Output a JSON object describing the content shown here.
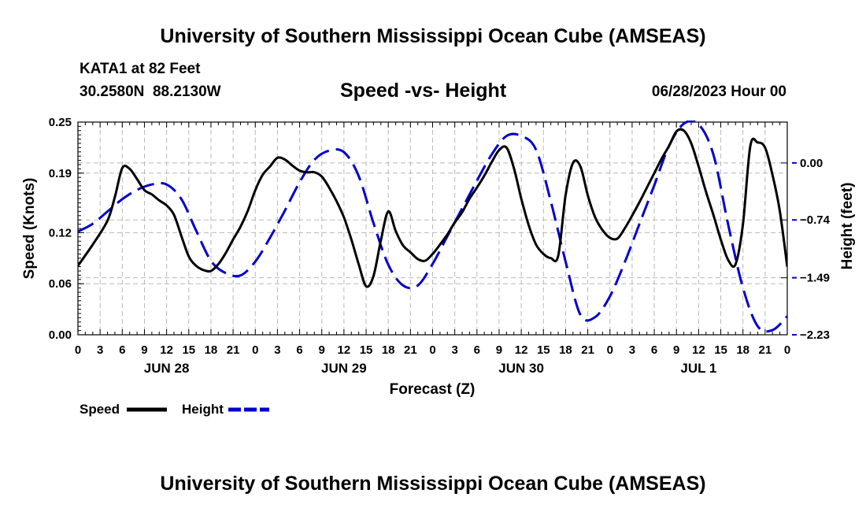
{
  "page": {
    "top_title": "University of Southern Mississippi Ocean Cube (AMSEAS)",
    "bottom_title": "University of Southern Mississippi Ocean Cube (AMSEAS)",
    "station": "KATA1 at 82 Feet",
    "coords": "30.2580N  88.2130W",
    "datetime": "06/28/2023 Hour 00"
  },
  "chart_data": {
    "type": "line",
    "title": "Speed -vs- Height",
    "xlabel": "Forecast (Z)",
    "ylabel_left": "Speed (Knots)",
    "ylabel_right": "Height (feet)",
    "x_unit": "hours from 06/28/2023 00Z",
    "xlim": [
      0,
      96
    ],
    "x_tick_step": 3,
    "x_tick_labels": [
      "0",
      "3",
      "6",
      "9",
      "12",
      "15",
      "18",
      "21",
      "0",
      "3",
      "6",
      "9",
      "12",
      "15",
      "18",
      "21",
      "0",
      "3",
      "6",
      "9",
      "12",
      "15",
      "18",
      "21",
      "0",
      "3",
      "6",
      "9",
      "12",
      "15",
      "18",
      "21",
      "0"
    ],
    "day_labels": [
      {
        "hour": 12,
        "label": "JUN 28"
      },
      {
        "hour": 36,
        "label": "JUN 29"
      },
      {
        "hour": 60,
        "label": "JUN 30"
      },
      {
        "hour": 84,
        "label": "JUL 1"
      }
    ],
    "ylim_left": [
      0,
      0.25
    ],
    "y_ticks_left": [
      0.0,
      0.06,
      0.12,
      0.19,
      0.25
    ],
    "y_tick_labels_left": [
      "0.00",
      "0.06",
      "0.12",
      "0.19",
      "0.25"
    ],
    "ylim_right": [
      -2.23,
      0.53
    ],
    "y_ticks_right": [
      0.0,
      -0.74,
      -1.49,
      -2.23
    ],
    "y_tick_labels_right": [
      "0.00",
      "−0.74",
      "−1.49",
      "−2.23"
    ],
    "grid": true,
    "series": [
      {
        "name": "Speed",
        "axis": "left",
        "color": "#000000",
        "style": "solid",
        "x": [
          0,
          2,
          4,
          5,
          6,
          7,
          8,
          9,
          10,
          11,
          12,
          13,
          14,
          15,
          16,
          17,
          18,
          19,
          20,
          21,
          22,
          23,
          24,
          25,
          26,
          27,
          28,
          29,
          30,
          31,
          32,
          33,
          34,
          35,
          36,
          37,
          38,
          39,
          40,
          41,
          42,
          43,
          44,
          45,
          46,
          47,
          48,
          49,
          50,
          51,
          52,
          53,
          54,
          55,
          56,
          57,
          58,
          59,
          60,
          61,
          62,
          63,
          64,
          65,
          66,
          67,
          68,
          69,
          70,
          71,
          72,
          73,
          74,
          75,
          76,
          77,
          78,
          79,
          80,
          81,
          82,
          83,
          84,
          85,
          86,
          87,
          88,
          89,
          90,
          91,
          92,
          93,
          94,
          95,
          96
        ],
        "values": [
          0.081,
          0.106,
          0.134,
          0.162,
          0.196,
          0.195,
          0.183,
          0.17,
          0.165,
          0.158,
          0.152,
          0.141,
          0.116,
          0.092,
          0.081,
          0.076,
          0.075,
          0.083,
          0.096,
          0.112,
          0.127,
          0.146,
          0.17,
          0.188,
          0.198,
          0.208,
          0.206,
          0.199,
          0.193,
          0.191,
          0.191,
          0.186,
          0.173,
          0.157,
          0.138,
          0.112,
          0.083,
          0.057,
          0.069,
          0.111,
          0.145,
          0.122,
          0.105,
          0.097,
          0.089,
          0.087,
          0.095,
          0.106,
          0.118,
          0.132,
          0.144,
          0.16,
          0.173,
          0.187,
          0.203,
          0.217,
          0.22,
          0.196,
          0.16,
          0.129,
          0.106,
          0.095,
          0.09,
          0.093,
          0.164,
          0.202,
          0.198,
          0.164,
          0.138,
          0.123,
          0.114,
          0.113,
          0.125,
          0.14,
          0.156,
          0.173,
          0.19,
          0.207,
          0.222,
          0.239,
          0.24,
          0.225,
          0.198,
          0.168,
          0.141,
          0.112,
          0.088,
          0.083,
          0.13,
          0.222,
          0.226,
          0.22,
          0.188,
          0.145,
          0.08
        ]
      },
      {
        "name": "Height",
        "axis": "right",
        "color": "#0000cc",
        "style": "dashed",
        "x": [
          0,
          2,
          4,
          6,
          8,
          10,
          12,
          14,
          16,
          18,
          20,
          22,
          24,
          26,
          28,
          30,
          32,
          34,
          36,
          38,
          40,
          42,
          44,
          46,
          48,
          50,
          52,
          54,
          56,
          58,
          60,
          62,
          64,
          66,
          68,
          70,
          72,
          74,
          76,
          78,
          80,
          82,
          84,
          86,
          88,
          90,
          92,
          94,
          96
        ],
        "values": [
          -0.89,
          -0.79,
          -0.63,
          -0.47,
          -0.35,
          -0.28,
          -0.28,
          -0.47,
          -0.88,
          -1.27,
          -1.43,
          -1.46,
          -1.28,
          -0.97,
          -0.62,
          -0.25,
          0.04,
          0.16,
          0.14,
          -0.17,
          -0.78,
          -1.32,
          -1.59,
          -1.59,
          -1.31,
          -0.95,
          -0.59,
          -0.23,
          0.11,
          0.35,
          0.35,
          0.17,
          -0.5,
          -1.28,
          -1.97,
          -2.0,
          -1.73,
          -1.29,
          -0.79,
          -0.29,
          0.22,
          0.51,
          0.5,
          0.11,
          -0.8,
          -1.62,
          -2.12,
          -2.17,
          -1.99
        ]
      }
    ],
    "legend": [
      {
        "label": "Speed",
        "color": "#000000",
        "style": "solid"
      },
      {
        "label": "Height",
        "color": "#0000cc",
        "style": "dashed"
      }
    ],
    "legend_position": "bottom-left"
  }
}
